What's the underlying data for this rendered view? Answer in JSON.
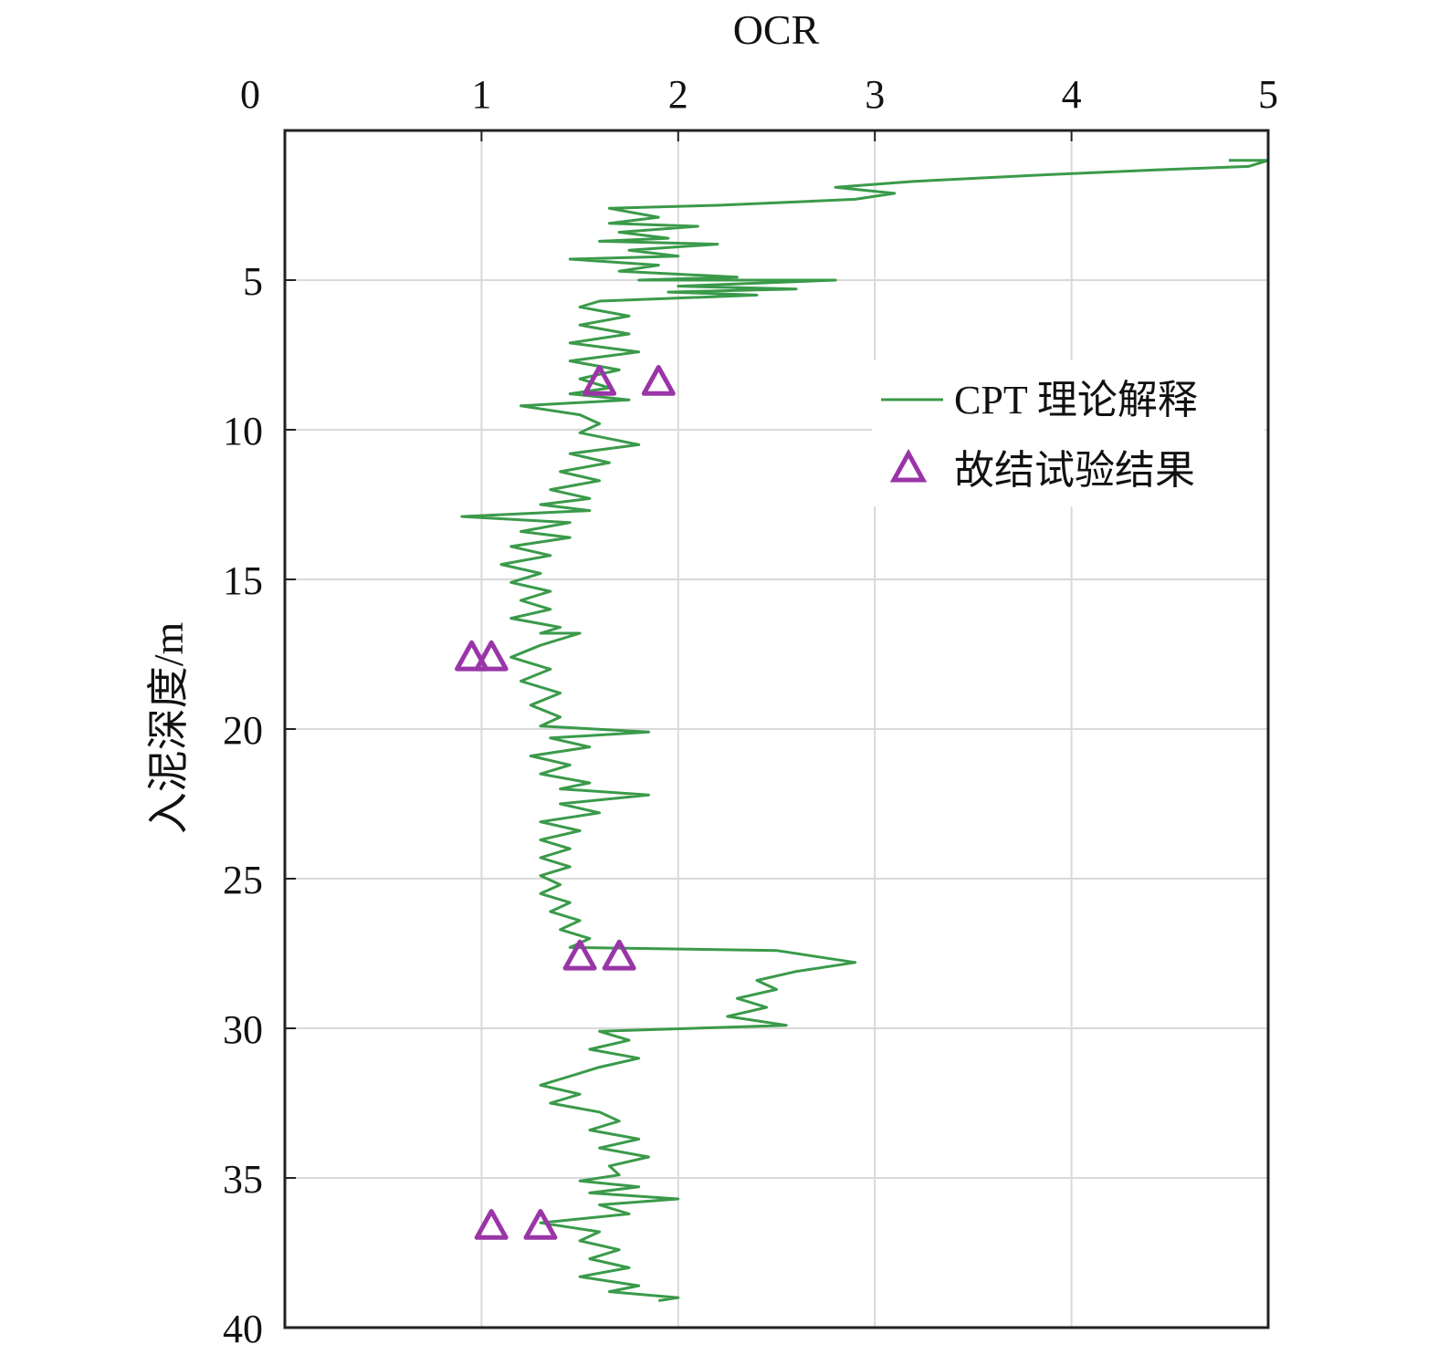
{
  "chart_data": {
    "type": "line",
    "title": "",
    "xlabel": "OCR",
    "ylabel": "入泥深度/m",
    "x_axis_position": "top",
    "y_axis_inverted": true,
    "xlim": [
      0,
      5
    ],
    "ylim": [
      0,
      40
    ],
    "xticks": [
      0,
      1,
      2,
      3,
      4,
      5
    ],
    "yticks": [
      5,
      10,
      15,
      20,
      25,
      30,
      35,
      40
    ],
    "grid": true,
    "legend_position": "top-right",
    "series": [
      {
        "name": "CPT 理论解释",
        "kind": "line",
        "color": "#3a9a4a",
        "points": [
          [
            4.8,
            1.0
          ],
          [
            5.0,
            1.0
          ],
          [
            4.9,
            1.2
          ],
          [
            4.5,
            1.3
          ],
          [
            3.8,
            1.5
          ],
          [
            3.2,
            1.7
          ],
          [
            2.8,
            1.9
          ],
          [
            3.1,
            2.1
          ],
          [
            2.9,
            2.3
          ],
          [
            2.2,
            2.5
          ],
          [
            1.65,
            2.6
          ],
          [
            1.9,
            2.9
          ],
          [
            1.65,
            3.1
          ],
          [
            2.1,
            3.2
          ],
          [
            1.7,
            3.4
          ],
          [
            1.95,
            3.6
          ],
          [
            1.6,
            3.7
          ],
          [
            2.2,
            3.8
          ],
          [
            1.75,
            4.0
          ],
          [
            2.0,
            4.2
          ],
          [
            1.45,
            4.3
          ],
          [
            1.9,
            4.5
          ],
          [
            1.7,
            4.7
          ],
          [
            2.3,
            4.9
          ],
          [
            1.8,
            5.0
          ],
          [
            2.8,
            5.0
          ],
          [
            2.0,
            5.2
          ],
          [
            2.6,
            5.3
          ],
          [
            1.95,
            5.4
          ],
          [
            2.4,
            5.5
          ],
          [
            1.6,
            5.7
          ],
          [
            1.5,
            5.9
          ],
          [
            1.75,
            6.2
          ],
          [
            1.5,
            6.5
          ],
          [
            1.75,
            6.8
          ],
          [
            1.45,
            7.1
          ],
          [
            1.8,
            7.4
          ],
          [
            1.45,
            7.7
          ],
          [
            1.7,
            8.0
          ],
          [
            1.5,
            8.3
          ],
          [
            1.65,
            8.6
          ],
          [
            1.45,
            8.8
          ],
          [
            1.75,
            9.0
          ],
          [
            1.2,
            9.2
          ],
          [
            1.5,
            9.5
          ],
          [
            1.6,
            9.8
          ],
          [
            1.5,
            10.1
          ],
          [
            1.65,
            10.3
          ],
          [
            1.8,
            10.5
          ],
          [
            1.45,
            10.8
          ],
          [
            1.65,
            11.1
          ],
          [
            1.4,
            11.4
          ],
          [
            1.6,
            11.7
          ],
          [
            1.35,
            12.0
          ],
          [
            1.55,
            12.3
          ],
          [
            1.3,
            12.5
          ],
          [
            1.55,
            12.7
          ],
          [
            0.9,
            12.9
          ],
          [
            1.45,
            13.1
          ],
          [
            1.2,
            13.4
          ],
          [
            1.45,
            13.6
          ],
          [
            1.15,
            13.9
          ],
          [
            1.35,
            14.2
          ],
          [
            1.1,
            14.5
          ],
          [
            1.3,
            14.8
          ],
          [
            1.15,
            15.1
          ],
          [
            1.35,
            15.4
          ],
          [
            1.2,
            15.7
          ],
          [
            1.35,
            16.0
          ],
          [
            1.15,
            16.3
          ],
          [
            1.4,
            16.6
          ],
          [
            1.3,
            16.8
          ],
          [
            1.5,
            16.8
          ],
          [
            1.3,
            17.2
          ],
          [
            1.15,
            17.6
          ],
          [
            1.35,
            18.0
          ],
          [
            1.2,
            18.4
          ],
          [
            1.4,
            18.8
          ],
          [
            1.25,
            19.2
          ],
          [
            1.4,
            19.6
          ],
          [
            1.3,
            19.9
          ],
          [
            1.85,
            20.1
          ],
          [
            1.35,
            20.3
          ],
          [
            1.55,
            20.6
          ],
          [
            1.25,
            20.9
          ],
          [
            1.45,
            21.2
          ],
          [
            1.3,
            21.5
          ],
          [
            1.55,
            21.8
          ],
          [
            1.4,
            22.0
          ],
          [
            1.85,
            22.2
          ],
          [
            1.4,
            22.5
          ],
          [
            1.6,
            22.8
          ],
          [
            1.3,
            23.1
          ],
          [
            1.5,
            23.4
          ],
          [
            1.3,
            23.7
          ],
          [
            1.45,
            24.0
          ],
          [
            1.3,
            24.3
          ],
          [
            1.45,
            24.6
          ],
          [
            1.3,
            24.9
          ],
          [
            1.4,
            25.2
          ],
          [
            1.3,
            25.5
          ],
          [
            1.45,
            25.8
          ],
          [
            1.35,
            26.1
          ],
          [
            1.5,
            26.4
          ],
          [
            1.4,
            26.7
          ],
          [
            1.55,
            27.0
          ],
          [
            1.45,
            27.3
          ],
          [
            2.5,
            27.4
          ],
          [
            2.7,
            27.6
          ],
          [
            2.9,
            27.8
          ],
          [
            2.6,
            28.1
          ],
          [
            2.4,
            28.4
          ],
          [
            2.5,
            28.7
          ],
          [
            2.3,
            29.0
          ],
          [
            2.45,
            29.3
          ],
          [
            2.25,
            29.6
          ],
          [
            2.55,
            29.9
          ],
          [
            1.6,
            30.1
          ],
          [
            1.75,
            30.4
          ],
          [
            1.55,
            30.7
          ],
          [
            1.8,
            31.0
          ],
          [
            1.6,
            31.3
          ],
          [
            1.45,
            31.6
          ],
          [
            1.3,
            31.9
          ],
          [
            1.5,
            32.2
          ],
          [
            1.35,
            32.5
          ],
          [
            1.6,
            32.8
          ],
          [
            1.7,
            33.1
          ],
          [
            1.55,
            33.4
          ],
          [
            1.8,
            33.7
          ],
          [
            1.6,
            34.0
          ],
          [
            1.85,
            34.3
          ],
          [
            1.65,
            34.6
          ],
          [
            1.7,
            34.9
          ],
          [
            1.5,
            35.1
          ],
          [
            1.8,
            35.3
          ],
          [
            1.55,
            35.5
          ],
          [
            2.0,
            35.7
          ],
          [
            1.6,
            35.9
          ],
          [
            1.75,
            36.2
          ],
          [
            1.3,
            36.5
          ],
          [
            1.6,
            36.8
          ],
          [
            1.5,
            37.1
          ],
          [
            1.7,
            37.4
          ],
          [
            1.55,
            37.7
          ],
          [
            1.75,
            38.0
          ],
          [
            1.5,
            38.3
          ],
          [
            1.8,
            38.6
          ],
          [
            1.65,
            38.8
          ],
          [
            2.0,
            39.0
          ],
          [
            1.9,
            39.1
          ]
        ]
      },
      {
        "name": "故结试验结果",
        "kind": "markers",
        "marker": "triangle",
        "color": "#9a35a8",
        "points": [
          [
            1.6,
            8.4
          ],
          [
            1.9,
            8.4
          ],
          [
            0.95,
            17.6
          ],
          [
            1.05,
            17.6
          ],
          [
            1.5,
            27.6
          ],
          [
            1.7,
            27.6
          ],
          [
            1.05,
            36.6
          ],
          [
            1.3,
            36.6
          ]
        ]
      }
    ]
  }
}
